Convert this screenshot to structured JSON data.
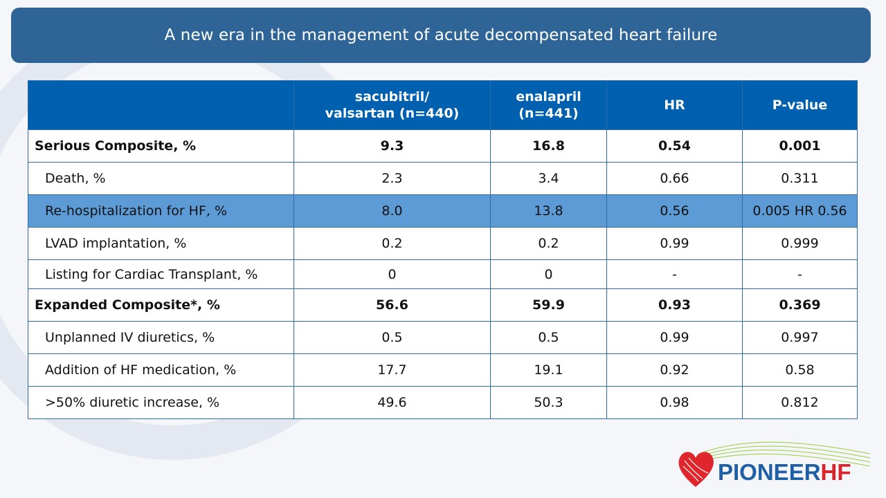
{
  "slide": {
    "title": "A new era in the management of acute decompensated heart failure"
  },
  "table": {
    "headers": {
      "label": "",
      "sac_line1": "sacubitril/",
      "sac_line2": "valsartan (n=440)",
      "ena_line1": "enalapril",
      "ena_line2": "(n=441)",
      "hr": "HR",
      "pvalue": "P-value"
    },
    "rows": [
      {
        "label": "Serious Composite, %",
        "sacubitril_valsartan": "9.3",
        "enalapril": "16.8",
        "hr": "0.54",
        "p_value": "0.001"
      },
      {
        "label": "Death, %",
        "sacubitril_valsartan": "2.3",
        "enalapril": "3.4",
        "hr": "0.66",
        "p_value": "0.311"
      },
      {
        "label": "Re-hospitalization for HF, %",
        "sacubitril_valsartan": "8.0",
        "enalapril": "13.8",
        "hr": "0.56",
        "p_value": "0.005 HR 0.56"
      },
      {
        "label": "LVAD implantation, %",
        "sacubitril_valsartan": "0.2",
        "enalapril": "0.2",
        "hr": "0.99",
        "p_value": "0.999"
      },
      {
        "label": "Listing for Cardiac Transplant, %",
        "sacubitril_valsartan": "0",
        "enalapril": "0",
        "hr": "-",
        "p_value": "-"
      },
      {
        "label": "Expanded Composite*, %",
        "sacubitril_valsartan": "56.6",
        "enalapril": "59.9",
        "hr": "0.93",
        "p_value": "0.369"
      },
      {
        "label": "Unplanned IV diuretics, %",
        "sacubitril_valsartan": "0.5",
        "enalapril": "0.5",
        "hr": "0.99",
        "p_value": "0.997"
      },
      {
        "label": "Addition of HF medication, %",
        "sacubitril_valsartan": "17.7",
        "enalapril": "19.1",
        "hr": "0.92",
        "p_value": "0.58"
      },
      {
        "label": ">50% diuretic increase, %",
        "sacubitril_valsartan": "49.6",
        "enalapril": "50.3",
        "hr": "0.98",
        "p_value": "0.812"
      }
    ]
  },
  "logo": {
    "text_main": "PIONEER",
    "text_accent": "HF",
    "icon": "heart-icon",
    "colors": {
      "heart": "#e0262d",
      "main": "#1f5fa6",
      "accent": "#d9262c",
      "waves": "#9ecb3c"
    }
  },
  "colors": {
    "title_bar": "#2f6496",
    "table_header": "#0060b0",
    "highlight_row": "#5c9bd6",
    "border": "#2f6aa8"
  }
}
